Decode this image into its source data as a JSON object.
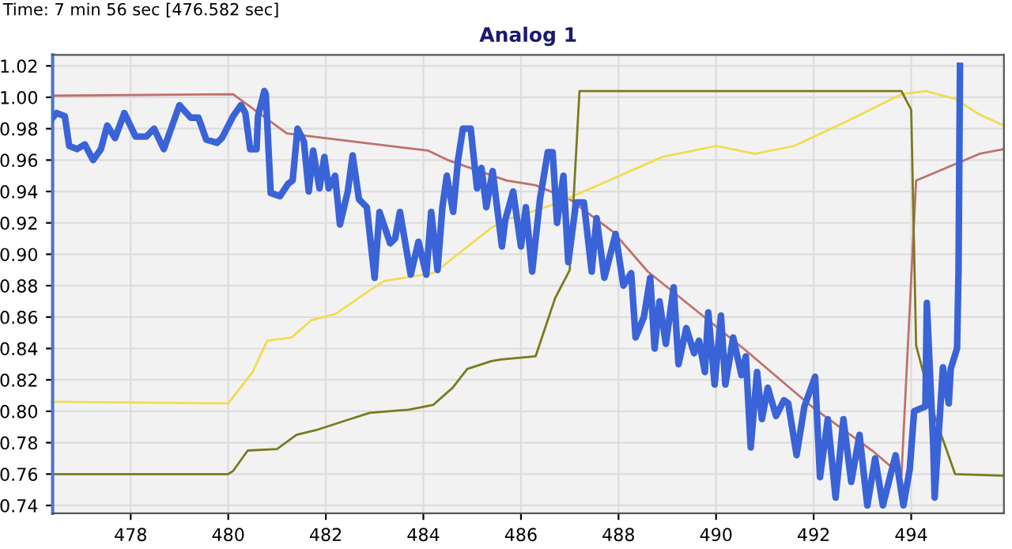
{
  "chart_data": {
    "type": "line",
    "title": "Analog 1",
    "annotations": [
      "Time: 7 min 56 sec [476.582 sec]"
    ],
    "xlim": [
      476.4,
      495.9
    ],
    "xticks": [
      478,
      480,
      482,
      484,
      486,
      488,
      490,
      492,
      494
    ],
    "ylim": [
      0.735,
      1.027
    ],
    "yticks": [
      {
        "value": 0.74,
        "label": "0.74"
      },
      {
        "value": 0.76,
        "label": "0.76"
      },
      {
        "value": 0.78,
        "label": "0.78"
      },
      {
        "value": 0.8,
        "label": "0.80"
      },
      {
        "value": 0.82,
        "label": "0.82"
      },
      {
        "value": 0.84,
        "label": "0.84"
      },
      {
        "value": 0.86,
        "label": "0.86"
      },
      {
        "value": 0.88,
        "label": "0.88"
      },
      {
        "value": 0.9,
        "label": "0.90"
      },
      {
        "value": 0.92,
        "label": "0.92"
      },
      {
        "value": 0.94,
        "label": "0.94"
      },
      {
        "value": 0.96,
        "label": "0.96"
      },
      {
        "value": 0.98,
        "label": "0.98"
      },
      {
        "value": 1.0,
        "label": "1.00"
      },
      {
        "value": 1.02,
        "label": "1.02"
      }
    ],
    "grid": true,
    "marker": "none",
    "line_style": "solid",
    "series": [
      {
        "color": "#3a63d8",
        "x": [
          476.4,
          476.48,
          476.65,
          476.74,
          476.9,
          477.06,
          477.23,
          477.39,
          477.52,
          477.68,
          477.87,
          478.1,
          478.32,
          478.48,
          478.68,
          479.0,
          479.23,
          479.39,
          479.55,
          479.77,
          479.87,
          480.1,
          480.26,
          480.35,
          480.45,
          480.58,
          480.61,
          480.74,
          480.77,
          480.87,
          481.06,
          481.23,
          481.32,
          481.42,
          481.55,
          481.65,
          481.74,
          481.87,
          481.97,
          482.06,
          482.19,
          482.29,
          482.45,
          482.55,
          482.68,
          482.84,
          483.0,
          483.1,
          483.32,
          483.42,
          483.52,
          483.74,
          483.9,
          484.06,
          484.16,
          484.29,
          484.39,
          484.48,
          484.61,
          484.71,
          484.81,
          484.97,
          485.1,
          485.19,
          485.29,
          485.42,
          485.61,
          485.68,
          485.84,
          486.0,
          486.1,
          486.23,
          486.39,
          486.55,
          486.65,
          486.74,
          486.87,
          486.97,
          487.13,
          487.29,
          487.45,
          487.55,
          487.71,
          487.94,
          488.1,
          488.26,
          488.35,
          488.52,
          488.65,
          488.74,
          488.84,
          488.97,
          489.13,
          489.23,
          489.39,
          489.55,
          489.65,
          489.77,
          489.84,
          489.97,
          490.1,
          490.19,
          490.35,
          490.52,
          490.61,
          490.71,
          490.84,
          490.94,
          491.06,
          491.23,
          491.39,
          491.48,
          491.65,
          491.81,
          492.03,
          492.13,
          492.29,
          492.45,
          492.61,
          492.77,
          492.94,
          493.1,
          493.26,
          493.42,
          493.58,
          493.68,
          493.84,
          493.97,
          494.06,
          494.29,
          494.32,
          494.45,
          494.48,
          494.65,
          494.77,
          494.81,
          494.94,
          494.97,
          495.0
        ],
        "values": [
          0.987,
          0.99,
          0.988,
          0.969,
          0.967,
          0.97,
          0.96,
          0.967,
          0.982,
          0.974,
          0.99,
          0.975,
          0.975,
          0.98,
          0.967,
          0.995,
          0.987,
          0.987,
          0.973,
          0.971,
          0.974,
          0.988,
          0.995,
          0.99,
          0.967,
          0.967,
          0.988,
          1.004,
          1.002,
          0.939,
          0.937,
          0.945,
          0.947,
          0.98,
          0.972,
          0.94,
          0.966,
          0.942,
          0.962,
          0.942,
          0.95,
          0.919,
          0.94,
          0.963,
          0.935,
          0.93,
          0.885,
          0.927,
          0.907,
          0.91,
          0.927,
          0.887,
          0.908,
          0.887,
          0.927,
          0.89,
          0.93,
          0.95,
          0.927,
          0.96,
          0.98,
          0.98,
          0.942,
          0.955,
          0.93,
          0.953,
          0.905,
          0.922,
          0.94,
          0.905,
          0.93,
          0.889,
          0.935,
          0.965,
          0.965,
          0.92,
          0.95,
          0.895,
          0.933,
          0.933,
          0.889,
          0.923,
          0.885,
          0.913,
          0.88,
          0.888,
          0.847,
          0.86,
          0.885,
          0.84,
          0.87,
          0.843,
          0.879,
          0.83,
          0.853,
          0.837,
          0.845,
          0.825,
          0.863,
          0.817,
          0.861,
          0.817,
          0.847,
          0.823,
          0.835,
          0.777,
          0.825,
          0.795,
          0.815,
          0.797,
          0.807,
          0.805,
          0.772,
          0.803,
          0.822,
          0.758,
          0.795,
          0.745,
          0.795,
          0.755,
          0.785,
          0.74,
          0.77,
          0.74,
          0.76,
          0.772,
          0.74,
          0.763,
          0.8,
          0.803,
          0.869,
          0.78,
          0.745,
          0.828,
          0.805,
          0.827,
          0.84,
          0.89,
          1.02
        ]
      },
      {
        "color": "#c0706a",
        "x": [
          476.4,
          480.1,
          481.2,
          484.1,
          484.5,
          485.7,
          486.3,
          487.0,
          487.9,
          488.6,
          490.6,
          492.0,
          493.2,
          493.8,
          494.1,
          495.4,
          495.9
        ],
        "values": [
          1.001,
          1.002,
          0.977,
          0.966,
          0.96,
          0.947,
          0.944,
          0.935,
          0.914,
          0.889,
          0.839,
          0.802,
          0.775,
          0.759,
          0.947,
          0.964,
          0.967
        ]
      },
      {
        "color": "#f0dc50",
        "x": [
          476.4,
          480.0,
          480.5,
          480.8,
          481.3,
          481.7,
          482.2,
          482.9,
          483.2,
          484.2,
          484.3,
          485.4,
          485.7,
          486.7,
          487.8,
          488.9,
          490.0,
          490.8,
          491.6,
          492.7,
          493.8,
          494.3,
          494.9,
          495.4,
          495.9
        ],
        "values": [
          0.806,
          0.805,
          0.825,
          0.845,
          0.847,
          0.858,
          0.862,
          0.877,
          0.883,
          0.888,
          0.89,
          0.917,
          0.922,
          0.932,
          0.947,
          0.962,
          0.969,
          0.964,
          0.969,
          0.985,
          1.002,
          1.004,
          0.999,
          0.989,
          0.982
        ]
      },
      {
        "color": "#7a7a1e",
        "x": [
          476.4,
          480.0,
          480.1,
          480.4,
          481.0,
          481.4,
          481.8,
          482.4,
          482.9,
          483.7,
          484.2,
          484.6,
          484.9,
          485.4,
          485.6,
          486.3,
          486.7,
          487.0,
          487.2,
          493.8,
          494.0,
          494.1,
          494.5,
          494.9,
          495.9
        ],
        "values": [
          0.76,
          0.76,
          0.762,
          0.775,
          0.776,
          0.785,
          0.788,
          0.794,
          0.799,
          0.801,
          0.804,
          0.815,
          0.827,
          0.832,
          0.833,
          0.835,
          0.872,
          0.89,
          1.004,
          1.004,
          0.992,
          0.842,
          0.795,
          0.76,
          0.759
        ]
      }
    ]
  }
}
